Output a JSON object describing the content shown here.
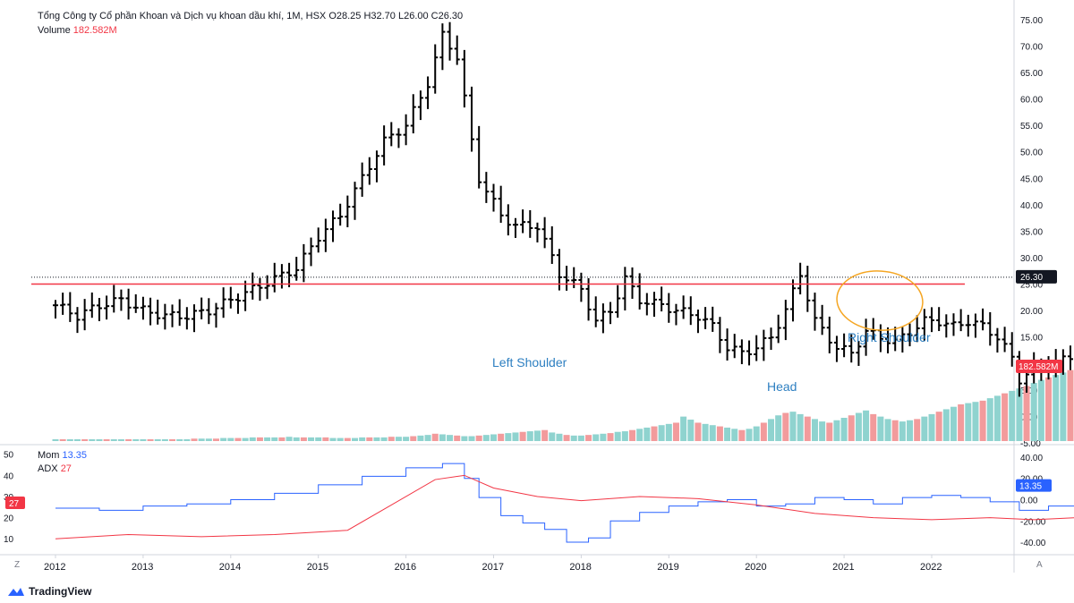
{
  "header": {
    "symbol_title": "Tổng Công ty Cổ phần Khoan và Dịch vụ khoan dầu khí, 1M, HSX",
    "ohlc": "O28.25  H32.70  L26.00  C26.30",
    "volume_label": "Volume",
    "volume_value": "182.582M"
  },
  "indicators": {
    "mom_label": "Mom",
    "mom_value": "13.35",
    "adx_label": "ADX",
    "adx_value": "27"
  },
  "badges": {
    "price": "26.30",
    "volume": "182.582M",
    "mom": "13.35",
    "adx": "27"
  },
  "colors": {
    "bar": "#000000",
    "up_volume": "#8fd3cf",
    "down_volume": "#f29b9c",
    "neckline": "#f23645",
    "mom_line": "#2962ff",
    "adx_line": "#f23645",
    "annotation_text": "#2d7fc1",
    "highlight_circle": "#f5a623"
  },
  "annotations": {
    "left_shoulder": "Left Shoulder",
    "head": "Head",
    "right_shoulder": "Right Shoulder"
  },
  "branding": {
    "name": "TradingView"
  },
  "corners": {
    "left": "Z",
    "right": "A"
  },
  "chart_data": [
    {
      "type": "ohlc",
      "interval": "1M",
      "x_unit": "month index from Jan 2012",
      "price_axis": {
        "ticks": [
          "75.00",
          "70.00",
          "65.00",
          "60.00",
          "55.00",
          "50.00",
          "45.00",
          "40.00",
          "35.00",
          "30.00",
          "25.00",
          "20.00",
          "15.00",
          "10.00",
          "5.00",
          "0.00",
          "-5.00"
        ],
        "ylim": [
          -5,
          77
        ]
      },
      "time_axis": {
        "ticks": [
          "2012",
          "2013",
          "2014",
          "2015",
          "2016",
          "2017",
          "2018",
          "2019",
          "2020",
          "2021",
          "2022"
        ]
      },
      "neckline_price": 25.0,
      "last_price": 26.3,
      "series": [
        {
          "name": "price_close_anchors",
          "points": [
            [
              0,
              21
            ],
            [
              3,
              19
            ],
            [
              6,
              21
            ],
            [
              9,
              22
            ],
            [
              12,
              20
            ],
            [
              15,
              19
            ],
            [
              18,
              19
            ],
            [
              21,
              20
            ],
            [
              24,
              22
            ],
            [
              27,
              24
            ],
            [
              30,
              26
            ],
            [
              33,
              28
            ],
            [
              36,
              34
            ],
            [
              39,
              38
            ],
            [
              42,
              45
            ],
            [
              45,
              52
            ],
            [
              48,
              55
            ],
            [
              51,
              63
            ],
            [
              53,
              72
            ],
            [
              55,
              68
            ],
            [
              57,
              52
            ],
            [
              58,
              45
            ],
            [
              61,
              38
            ],
            [
              63,
              36
            ],
            [
              66,
              36
            ],
            [
              69,
              27
            ],
            [
              72,
              24
            ],
            [
              74,
              18
            ],
            [
              76,
              20
            ],
            [
              78,
              26
            ],
            [
              80,
              22
            ],
            [
              83,
              21
            ],
            [
              85,
              20
            ],
            [
              88,
              19
            ],
            [
              90,
              17
            ],
            [
              92,
              13
            ],
            [
              94,
              12
            ],
            [
              96,
              13
            ],
            [
              98,
              15
            ],
            [
              100,
              20
            ],
            [
              102,
              27
            ],
            [
              104,
              18
            ],
            [
              107,
              13
            ],
            [
              109,
              12
            ],
            [
              111,
              16
            ],
            [
              113,
              15
            ],
            [
              115,
              14
            ],
            [
              117,
              16
            ],
            [
              119,
              18
            ],
            [
              121,
              18
            ],
            [
              123,
              17
            ],
            [
              125,
              18
            ],
            [
              127,
              17
            ],
            [
              129,
              15
            ],
            [
              131,
              11
            ],
            [
              132,
              7
            ],
            [
              134,
              9
            ],
            [
              137,
              10
            ],
            [
              140,
              12
            ],
            [
              142,
              14
            ],
            [
              144,
              20
            ],
            [
              146,
              24
            ],
            [
              148,
              20
            ],
            [
              150,
              19
            ],
            [
              152,
              22
            ],
            [
              154,
              18
            ],
            [
              156,
              20
            ],
            [
              158,
              24
            ],
            [
              160,
              29
            ],
            [
              161,
              26.3
            ]
          ]
        }
      ]
    },
    {
      "type": "bar",
      "name": "Volume",
      "last_value": "182.582M",
      "values": [
        3,
        3,
        3,
        3,
        3,
        3,
        3,
        3,
        3,
        3,
        3,
        3,
        3,
        3,
        3,
        3,
        3,
        3,
        3,
        4,
        4,
        4,
        4,
        5,
        5,
        5,
        5,
        6,
        6,
        6,
        6,
        6,
        7,
        6,
        6,
        6,
        6,
        6,
        5,
        5,
        5,
        5,
        6,
        6,
        6,
        6,
        7,
        7,
        7,
        8,
        9,
        10,
        12,
        11,
        10,
        9,
        8,
        8,
        9,
        10,
        11,
        12,
        13,
        14,
        15,
        16,
        17,
        18,
        14,
        12,
        10,
        9,
        9,
        10,
        11,
        12,
        13,
        15,
        16,
        18,
        20,
        22,
        24,
        26,
        28,
        30,
        40,
        35,
        30,
        28,
        26,
        24,
        22,
        20,
        18,
        20,
        24,
        30,
        36,
        42,
        46,
        48,
        44,
        40,
        36,
        32,
        30,
        34,
        38,
        42,
        46,
        50,
        44,
        40,
        36,
        34,
        32,
        34,
        36,
        40,
        44,
        48,
        52,
        56,
        60,
        62,
        64,
        66,
        70,
        74,
        78,
        82,
        86,
        90,
        95,
        100,
        104,
        108,
        112,
        116,
        120,
        124,
        128,
        132,
        136,
        140,
        144,
        150,
        156,
        160,
        166,
        170,
        176,
        182.582
      ],
      "units": "relative"
    },
    {
      "type": "line",
      "name": "Mom",
      "last_value": 13.35,
      "yticks": [
        "40.00",
        "20.00",
        "0.00",
        "-20.00",
        "-40.00"
      ],
      "ylim": [
        -45,
        45
      ]
    },
    {
      "type": "line",
      "name": "ADX",
      "last_value": 27,
      "yticks": [
        "50",
        "40",
        "30",
        "20",
        "10"
      ],
      "ylim": [
        5,
        52
      ]
    }
  ]
}
